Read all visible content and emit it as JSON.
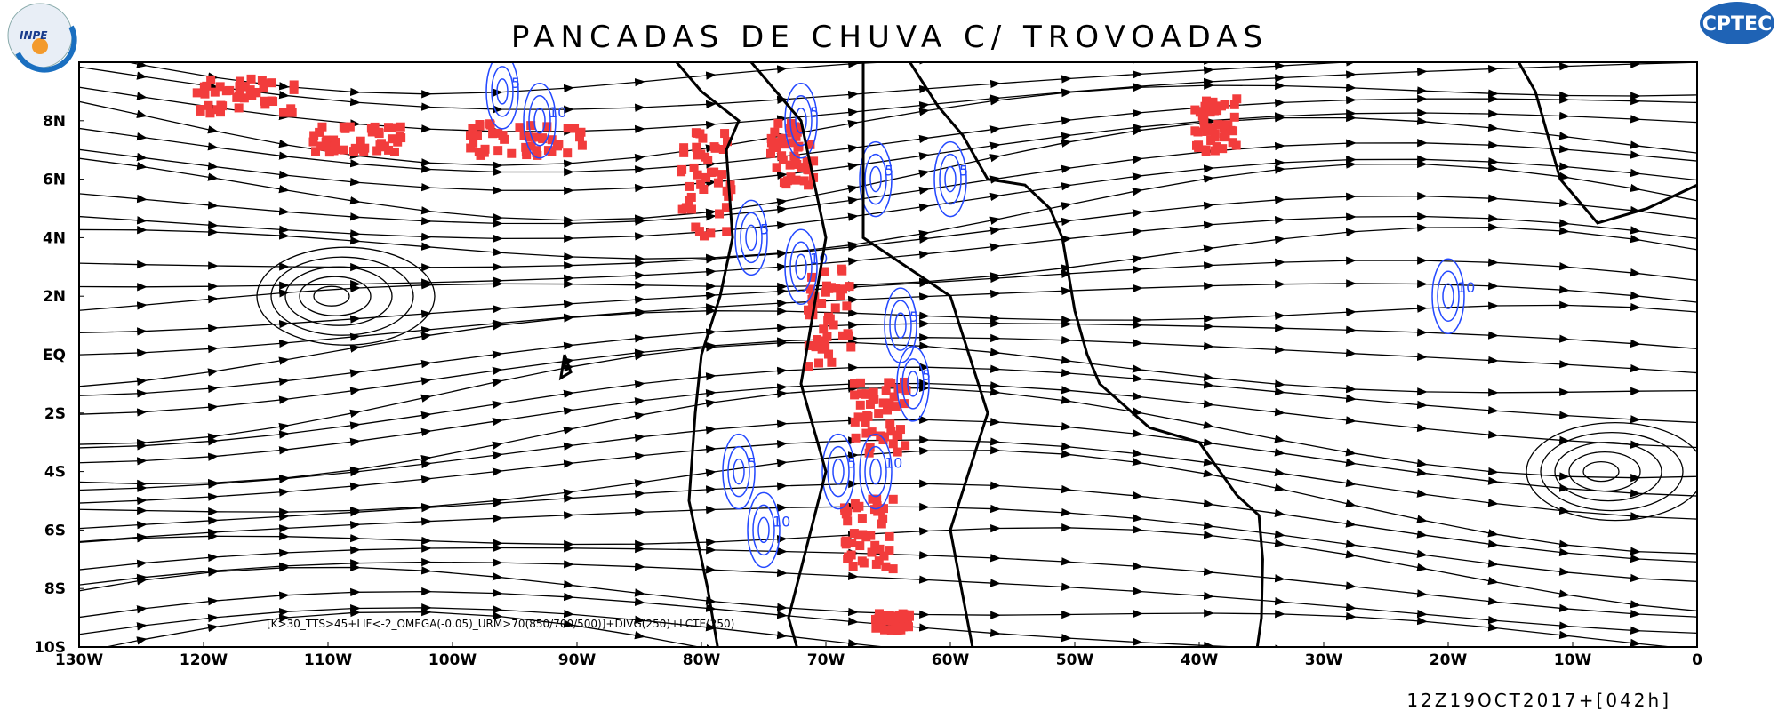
{
  "header": {
    "title": "PANCADAS DE CHUVA C/ TROVOADAS",
    "left_logo": "INPE",
    "right_logo": "CPTEC"
  },
  "map": {
    "lat_labels": [
      "10S",
      "8S",
      "6S",
      "4S",
      "2S",
      "EQ",
      "2N",
      "4N",
      "6N",
      "8N"
    ],
    "lon_labels": [
      "130W",
      "120W",
      "110W",
      "100W",
      "90W",
      "80W",
      "70W",
      "60W",
      "50W",
      "40W",
      "30W",
      "20W",
      "10W",
      "0"
    ],
    "contour_labels": [
      "5",
      "10",
      "5",
      "5",
      "5",
      "10",
      "10",
      "5",
      "5",
      "10",
      "5",
      "10",
      "5",
      "5",
      "5"
    ]
  },
  "footer": {
    "caption": "[K>30_TTS>45+LIF<-2_OMEGA(-0.05)_URM>70(850/700/500)]+DIVG(250)+LCTE(250)",
    "timestamp": "12Z19OCT2017+[042h]"
  }
}
